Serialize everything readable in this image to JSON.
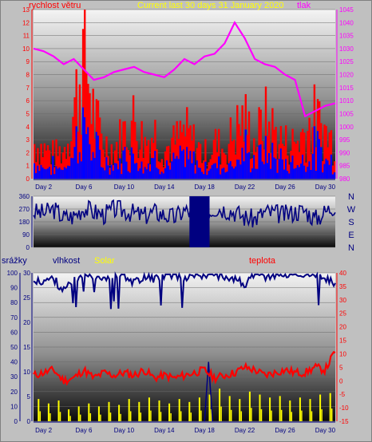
{
  "title": "Current last 30 days 31 January 2020",
  "colors": {
    "frame": "#c0c0c0",
    "wind": "#ff0000",
    "gust_blue": "#0000ff",
    "pressure": "#ff00ff",
    "direction": "#000080",
    "humidity": "#000080",
    "temperature": "#ff0000",
    "rain": "#000080",
    "solar": "#ffff00",
    "left_axis": "#ff0000",
    "right_axis": "#ff00ff",
    "x_axis": "#000080"
  },
  "top_chart": {
    "left_label": "rychlost větru",
    "right_label": "tlak",
    "left_ticks": [
      "0",
      "1",
      "2",
      "3",
      "4",
      "5",
      "6",
      "7",
      "8",
      "9",
      "10",
      "11",
      "12",
      "13"
    ],
    "right_ticks": [
      "980",
      "985",
      "990",
      "995",
      "1000",
      "1005",
      "1010",
      "1015",
      "1020",
      "1025",
      "1030",
      "1035",
      "1040",
      "1045"
    ]
  },
  "dir_chart": {
    "left_ticks": [
      "0",
      "90",
      "180",
      "270",
      "360"
    ],
    "compass": [
      "N",
      "W",
      "S",
      "E",
      "N"
    ]
  },
  "bottom_chart": {
    "label_rain": "srážky",
    "label_humidity": "vlhkost",
    "label_solar": "Solar",
    "label_temp": "teplota",
    "rain_ticks": [
      "0",
      "10",
      "20",
      "30",
      "40",
      "50",
      "60",
      "70",
      "80",
      "90",
      "100"
    ],
    "hum_ticks": [
      "0",
      "5",
      "10",
      "15",
      "20",
      "25",
      "30"
    ],
    "temp_ticks": [
      "-15",
      "-10",
      "-5",
      "0",
      "5",
      "10",
      "15",
      "20",
      "25",
      "30",
      "35",
      "40"
    ]
  },
  "x_labels": [
    "Day 2",
    "Day 6",
    "Day 10",
    "Day 14",
    "Day 18",
    "Day 22",
    "Day 26",
    "Day 30"
  ],
  "chart_data": [
    {
      "type": "area",
      "name": "wind and pressure",
      "x": [
        1,
        2,
        3,
        4,
        5,
        6,
        7,
        8,
        9,
        10,
        11,
        12,
        13,
        14,
        15,
        16,
        17,
        18,
        19,
        20,
        21,
        22,
        23,
        24,
        25,
        26,
        27,
        28,
        29,
        30,
        31
      ],
      "series": [
        {
          "name": "rychlost větru",
          "axis": "left",
          "values": [
            3,
            2.5,
            2,
            2.5,
            6,
            11,
            5,
            3,
            2.5,
            4,
            5,
            3,
            4,
            2.5,
            3,
            4,
            3,
            2,
            3,
            2.5,
            4,
            5,
            3,
            5,
            4,
            3,
            3,
            4,
            5,
            4,
            3
          ]
        },
        {
          "name": "tlak",
          "axis": "right",
          "values": [
            1030,
            1029,
            1027,
            1024,
            1026,
            1022,
            1018,
            1019,
            1021,
            1022,
            1023,
            1021,
            1020,
            1019,
            1022,
            1026,
            1024,
            1027,
            1028,
            1032,
            1040,
            1034,
            1026,
            1024,
            1023,
            1020,
            1018,
            1004,
            1006,
            1008,
            1009
          ]
        }
      ],
      "ylim_left": [
        0,
        13
      ],
      "ylim_right": [
        980,
        1045
      ]
    },
    {
      "type": "area",
      "name": "wind direction",
      "x": [
        1,
        2,
        3,
        4,
        5,
        6,
        7,
        8,
        9,
        10,
        11,
        12,
        13,
        14,
        15,
        16,
        17,
        18,
        19,
        20,
        21,
        22,
        23,
        24,
        25,
        26,
        27,
        28,
        29,
        30,
        31
      ],
      "series": [
        {
          "name": "direction",
          "values": [
            250,
            240,
            270,
            210,
            220,
            280,
            250,
            230,
            270,
            260,
            240,
            220,
            250,
            230,
            210,
            260,
            240,
            230,
            280,
            270,
            250,
            210,
            200,
            250,
            240,
            230,
            250,
            260,
            200,
            250,
            300
          ]
        }
      ],
      "ylim": [
        0,
        360
      ]
    },
    {
      "type": "line",
      "name": "humidity temperature rain solar",
      "x": [
        1,
        2,
        3,
        4,
        5,
        6,
        7,
        8,
        9,
        10,
        11,
        12,
        13,
        14,
        15,
        16,
        17,
        18,
        19,
        20,
        21,
        22,
        23,
        24,
        25,
        26,
        27,
        28,
        29,
        30,
        31
      ],
      "series": [
        {
          "name": "vlhkost",
          "axis": "left",
          "values": [
            93,
            95,
            96,
            88,
            94,
            98,
            99,
            97,
            98,
            99,
            93,
            98,
            96,
            99,
            99,
            96,
            99,
            99,
            99,
            98,
            96,
            92,
            99,
            97,
            99,
            99,
            99,
            99,
            99,
            95,
            93
          ]
        },
        {
          "name": "teplota",
          "axis": "right",
          "values": [
            2,
            3,
            4,
            0,
            1,
            4,
            1,
            3,
            2,
            3,
            2,
            4,
            1,
            2,
            1,
            2,
            3,
            4,
            1,
            2,
            3,
            5,
            4,
            2,
            3,
            4,
            3,
            3,
            5,
            4,
            11
          ]
        },
        {
          "name": "Solar",
          "axis": "left",
          "values": [
            15,
            12,
            14,
            8,
            10,
            12,
            10,
            13,
            11,
            15,
            13,
            16,
            14,
            12,
            15,
            13,
            16,
            18,
            22,
            17,
            15,
            20,
            18,
            16,
            17,
            14,
            16,
            15,
            18,
            19,
            12
          ]
        }
      ],
      "ylim_left": [
        0,
        100
      ],
      "ylim_right": [
        -15,
        40
      ]
    }
  ]
}
